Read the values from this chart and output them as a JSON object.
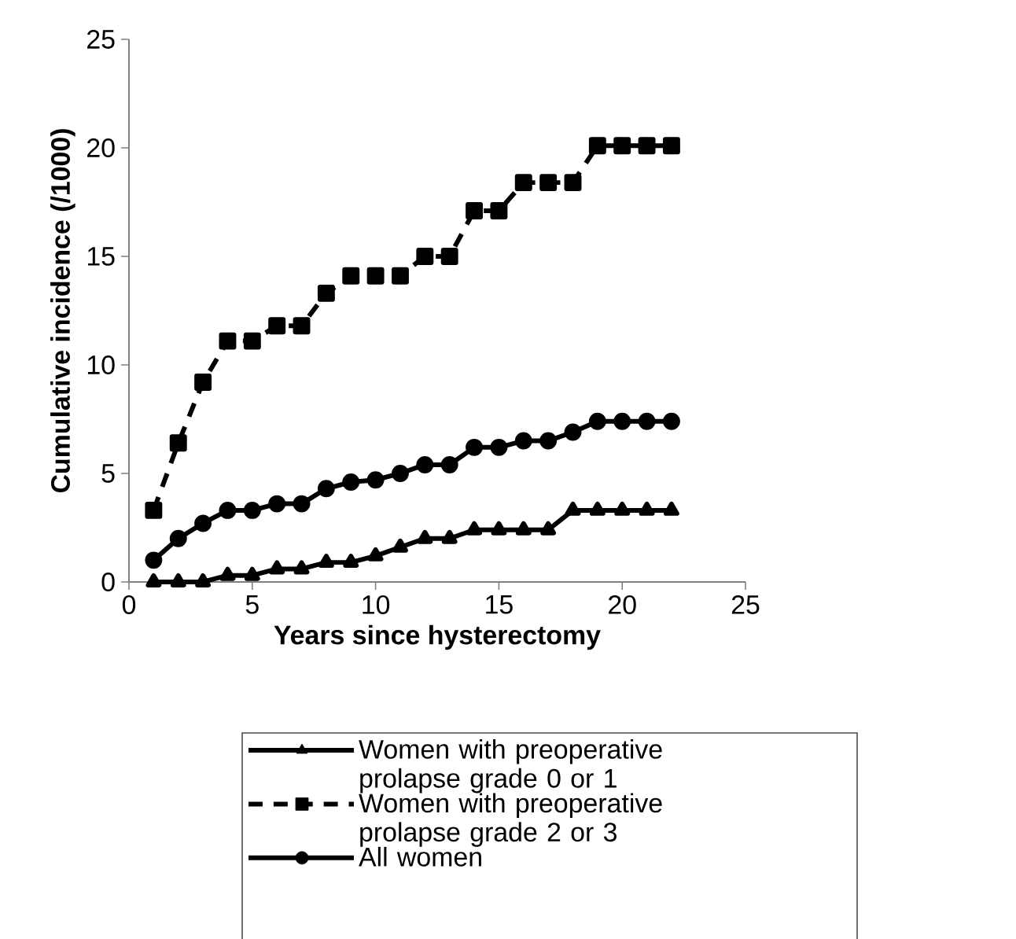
{
  "chart_data": {
    "type": "line",
    "xlabel": "Years since hysterectomy",
    "ylabel": "Cumulative incidence (/1000)",
    "x": [
      1,
      2,
      3,
      4,
      5,
      6,
      7,
      8,
      9,
      10,
      11,
      12,
      13,
      14,
      15,
      16,
      17,
      18,
      19,
      20,
      21,
      22
    ],
    "series": [
      {
        "name": "Women with preoperative prolapse grade 0 or 1",
        "color": "#000000",
        "marker": "triangle",
        "line_style": "solid",
        "values": [
          0,
          0,
          0,
          0.3,
          0.3,
          0.6,
          0.6,
          0.9,
          0.9,
          1.2,
          1.6,
          2.0,
          2.0,
          2.4,
          2.4,
          2.4,
          2.4,
          3.3,
          3.3,
          3.3,
          3.3,
          3.3
        ]
      },
      {
        "name": "Women with preoperative prolapse grade 2 or 3",
        "color": "#000000",
        "marker": "square",
        "line_style": "dashed",
        "values": [
          3.3,
          6.4,
          9.2,
          11.1,
          11.1,
          11.8,
          11.8,
          13.3,
          14.1,
          14.1,
          14.1,
          15.0,
          15.0,
          17.1,
          17.1,
          18.4,
          18.4,
          18.4,
          20.1,
          20.1,
          20.1,
          20.1
        ]
      },
      {
        "name": "All women",
        "color": "#000000",
        "marker": "circle",
        "line_style": "solid",
        "values": [
          1.0,
          2.0,
          2.7,
          3.3,
          3.3,
          3.6,
          3.6,
          4.3,
          4.6,
          4.7,
          5.0,
          5.4,
          5.4,
          6.2,
          6.2,
          6.5,
          6.5,
          6.9,
          7.4,
          7.4,
          7.4,
          7.4
        ]
      }
    ],
    "xlim": [
      0,
      25
    ],
    "xticks": [
      0,
      5,
      10,
      15,
      20,
      25
    ],
    "ylim": [
      0,
      25
    ],
    "yticks": [
      0,
      5,
      10,
      15,
      20,
      25
    ],
    "grid": false,
    "legend": "bottom"
  }
}
